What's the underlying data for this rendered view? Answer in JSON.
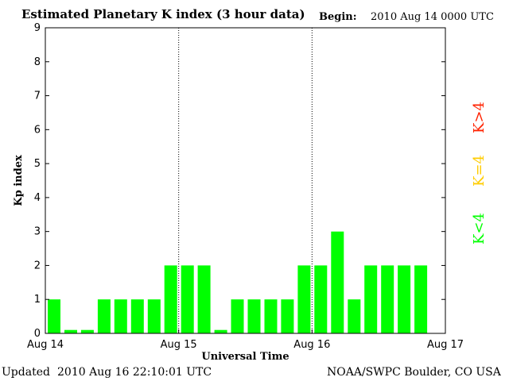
{
  "header": {
    "title": "Estimated Planetary K index (3 hour data)",
    "begin_label": "Begin:",
    "begin_value": "2010 Aug 14 0000 UTC"
  },
  "footer": {
    "updated_label": "Updated",
    "updated_value": "2010 Aug 16 22:10:01 UTC",
    "source": "NOAA/SWPC Boulder, CO USA"
  },
  "colors": {
    "low": "#00ff00",
    "mid": "#ffcc00",
    "high": "#ff2200"
  },
  "chart_data": {
    "type": "bar",
    "title": "Estimated Planetary K index (3 hour data)",
    "xlabel": "Universal Time",
    "ylabel": "Kp index",
    "ylim": [
      0,
      9
    ],
    "yticks": [
      "0",
      "1",
      "2",
      "3",
      "4",
      "5",
      "6",
      "7",
      "8",
      "9"
    ],
    "xticks": [
      "Aug 14",
      "Aug 15",
      "Aug 16",
      "Aug 17"
    ],
    "categories": [
      "Aug 14 00",
      "Aug 14 03",
      "Aug 14 06",
      "Aug 14 09",
      "Aug 14 12",
      "Aug 14 15",
      "Aug 14 18",
      "Aug 14 21",
      "Aug 15 00",
      "Aug 15 03",
      "Aug 15 06",
      "Aug 15 09",
      "Aug 15 12",
      "Aug 15 15",
      "Aug 15 18",
      "Aug 15 21",
      "Aug 16 00",
      "Aug 16 03",
      "Aug 16 06",
      "Aug 16 09",
      "Aug 16 12",
      "Aug 16 15",
      "Aug 16 18",
      "Aug 16 21"
    ],
    "values": [
      1,
      0.1,
      0.1,
      1,
      1,
      1,
      1,
      2,
      2,
      2,
      0.1,
      1,
      1,
      1,
      1,
      2,
      2,
      3,
      1,
      2,
      2,
      2,
      2,
      null
    ],
    "day_separators": [
      "Aug 15",
      "Aug 16"
    ],
    "legend": [
      {
        "label": "K<4",
        "color": "#00ff00"
      },
      {
        "label": "K=4",
        "color": "#ffcc00"
      },
      {
        "label": "K>4",
        "color": "#ff2200"
      }
    ],
    "legend_position": "right, vertical"
  }
}
